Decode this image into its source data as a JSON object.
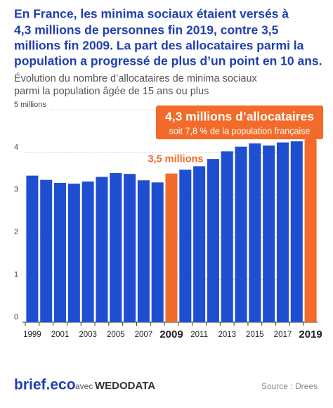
{
  "chart_data": {
    "type": "bar",
    "title_lines": [
      "En France, les minima sociaux étaient versés à",
      "4,3 millions de personnes fin 2019, contre 3,5",
      "millions fin 2009. La part des allocataires parmi la",
      "population a progressé de plus d’un point en 10 ans."
    ],
    "subtitle_lines": [
      "Évolution du nombre d’allocataires de minima sociaux",
      "parmi la population âgée de 15 ans ou plus"
    ],
    "categories": [
      "1999",
      null,
      "2001",
      null,
      "2003",
      null,
      "2005",
      null,
      "2007",
      null,
      "2009",
      null,
      "2011",
      null,
      "2013",
      null,
      "2015",
      null,
      "2017",
      null,
      "2019"
    ],
    "values": [
      3.45,
      3.35,
      3.28,
      3.26,
      3.31,
      3.42,
      3.51,
      3.49,
      3.34,
      3.29,
      3.5,
      3.59,
      3.67,
      3.84,
      4.02,
      4.13,
      4.21,
      4.16,
      4.23,
      4.26,
      4.3
    ],
    "colors": [
      "#1f4fd1",
      "#1f4fd1",
      "#1f4fd1",
      "#1f4fd1",
      "#1f4fd1",
      "#1f4fd1",
      "#1f4fd1",
      "#1f4fd1",
      "#1f4fd1",
      "#1f4fd1",
      "#f26b2a",
      "#1f4fd1",
      "#1f4fd1",
      "#1f4fd1",
      "#1f4fd1",
      "#1f4fd1",
      "#1f4fd1",
      "#1f4fd1",
      "#1f4fd1",
      "#1f4fd1",
      "#f26b2a"
    ],
    "ylim": [
      0,
      5.1
    ],
    "yticks": [
      0,
      1,
      2,
      3,
      4,
      {
        "value": 5,
        "label": "5 millions"
      }
    ],
    "grid": true,
    "annotations": {
      "label_2009": "3,5 millions",
      "callout_title": "4,3 millions d’allocataires",
      "callout_text": "soit 7,8 % de la population française"
    },
    "footer": {
      "brand": "brief.eco",
      "with": "avec",
      "partner": "WEDODATA",
      "source": "Source : Drees"
    }
  }
}
